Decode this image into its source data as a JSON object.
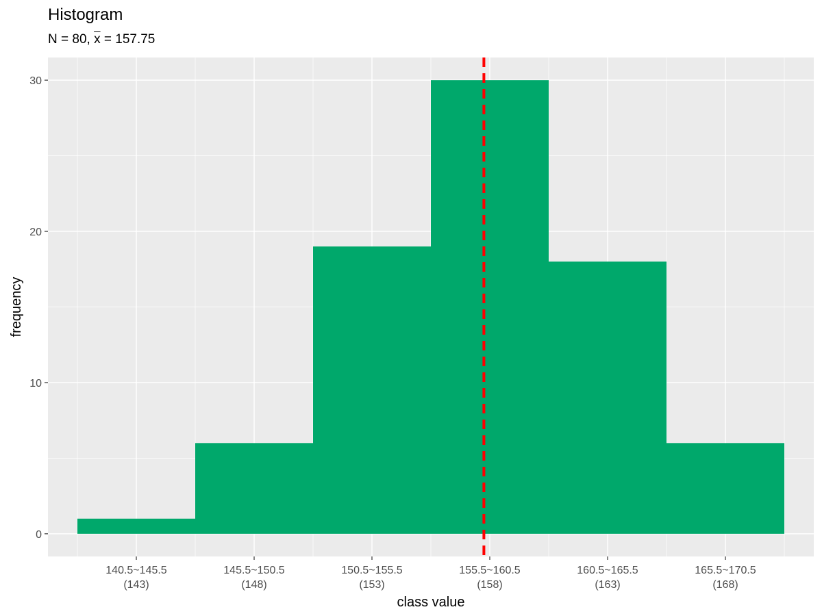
{
  "chart_data": {
    "type": "bar",
    "title": "Histogram",
    "subtitle": {
      "n_label": "N",
      "n_value": "80",
      "mean_symbol": "x",
      "mean_value": "157.75"
    },
    "xlabel": "class value",
    "ylabel": "frequency",
    "categories": [
      {
        "range": "140.5~145.5",
        "class_value": "(143)"
      },
      {
        "range": "145.5~150.5",
        "class_value": "(148)"
      },
      {
        "range": "150.5~155.5",
        "class_value": "(153)"
      },
      {
        "range": "155.5~160.5",
        "class_value": "(158)"
      },
      {
        "range": "160.5~165.5",
        "class_value": "(163)"
      },
      {
        "range": "165.5~170.5",
        "class_value": "(168)"
      }
    ],
    "class_mids": [
      143,
      148,
      153,
      158,
      163,
      168
    ],
    "bin_width": 5,
    "values": [
      1,
      6,
      19,
      30,
      18,
      6
    ],
    "ylim": [
      0,
      30
    ],
    "yticks": [
      0,
      10,
      20,
      30
    ],
    "mean_line": 157.75,
    "colors": {
      "bar": "#00A86B",
      "mean_line": "#FF0000",
      "panel": "#EBEBEB",
      "grid": "#FFFFFF"
    },
    "grid": true,
    "legend": "none"
  }
}
